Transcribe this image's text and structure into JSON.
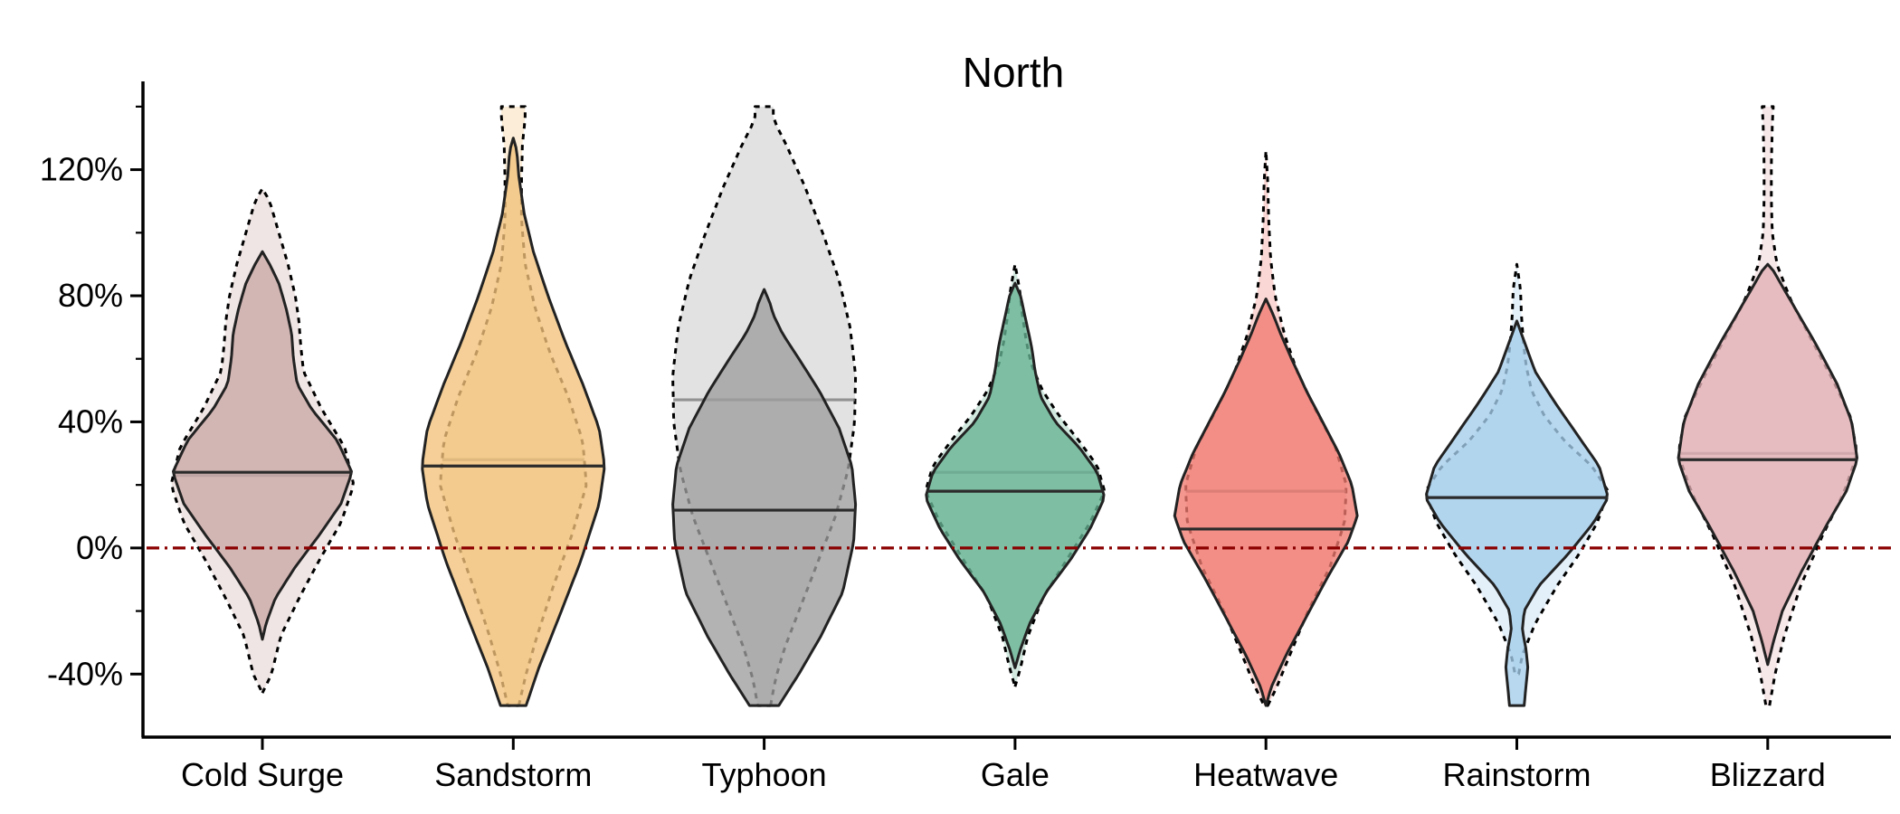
{
  "chart_data": {
    "type": "violin",
    "title": "North",
    "xlabel": "",
    "ylabel": "",
    "categories": [
      "Cold Surge",
      "Sandstorm",
      "Typhoon",
      "Gale",
      "Heatwave",
      "Rainstorm",
      "Blizzard"
    ],
    "ylim": [
      -60,
      148
    ],
    "y_ticks": [
      -40,
      0,
      40,
      80,
      120
    ],
    "y_tick_labels": [
      "-40%",
      "0%",
      "40%",
      "80%",
      "120%"
    ],
    "grid": false,
    "reference_line": {
      "y": 0,
      "style": "dash-dot",
      "color": "#8b0000"
    },
    "colors": [
      "#c9a9a6",
      "#f2c27a",
      "#9e9e9e",
      "#66b394",
      "#f07a70",
      "#a4cdea",
      "#e2b0b5"
    ],
    "series": [
      {
        "name": "",
        "style": "dotted-outline-light-fill",
        "violins": [
          {
            "min": -46,
            "max": 114,
            "median": 23,
            "shape": [
              [
                -46,
                0
              ],
              [
                -40,
                0.1
              ],
              [
                -28,
                0.2
              ],
              [
                -16,
                0.4
              ],
              [
                -4,
                0.62
              ],
              [
                8,
                0.86
              ],
              [
                20,
                1
              ],
              [
                32,
                0.9
              ],
              [
                44,
                0.65
              ],
              [
                56,
                0.45
              ],
              [
                64,
                0.42
              ],
              [
                72,
                0.4
              ],
              [
                80,
                0.36
              ],
              [
                90,
                0.28
              ],
              [
                100,
                0.18
              ],
              [
                110,
                0.08
              ],
              [
                114,
                0
              ]
            ]
          },
          {
            "min": -50,
            "max": 140,
            "median": 28,
            "shape": [
              [
                -50,
                0.06
              ],
              [
                -40,
                0.14
              ],
              [
                -28,
                0.26
              ],
              [
                -12,
                0.44
              ],
              [
                4,
                0.64
              ],
              [
                20,
                0.8
              ],
              [
                34,
                0.76
              ],
              [
                48,
                0.6
              ],
              [
                62,
                0.4
              ],
              [
                76,
                0.24
              ],
              [
                90,
                0.13
              ],
              [
                104,
                0.09
              ],
              [
                116,
                0.09
              ],
              [
                128,
                0.1
              ],
              [
                136,
                0.13
              ],
              [
                140,
                0.13
              ]
            ]
          },
          {
            "min": -50,
            "max": 140,
            "median": 47,
            "shape": [
              [
                -50,
                0.07
              ],
              [
                -42,
                0.12
              ],
              [
                -32,
                0.22
              ],
              [
                -20,
                0.38
              ],
              [
                -5,
                0.58
              ],
              [
                10,
                0.78
              ],
              [
                25,
                0.92
              ],
              [
                40,
                0.99
              ],
              [
                55,
                1
              ],
              [
                70,
                0.94
              ],
              [
                85,
                0.82
              ],
              [
                100,
                0.64
              ],
              [
                115,
                0.44
              ],
              [
                128,
                0.24
              ],
              [
                136,
                0.1
              ],
              [
                140,
                0.1
              ]
            ]
          },
          {
            "min": -44,
            "max": 90,
            "median": 24,
            "shape": [
              [
                -44,
                0
              ],
              [
                -38,
                0.06
              ],
              [
                -28,
                0.14
              ],
              [
                -16,
                0.3
              ],
              [
                -4,
                0.56
              ],
              [
                8,
                0.82
              ],
              [
                18,
                0.98
              ],
              [
                26,
                0.9
              ],
              [
                34,
                0.7
              ],
              [
                42,
                0.48
              ],
              [
                50,
                0.3
              ],
              [
                58,
                0.18
              ],
              [
                66,
                0.12
              ],
              [
                74,
                0.08
              ],
              [
                82,
                0.05
              ],
              [
                90,
                0
              ]
            ]
          },
          {
            "min": -50,
            "max": 126,
            "median": 18,
            "shape": [
              [
                -50,
                0.02
              ],
              [
                -44,
                0.12
              ],
              [
                -34,
                0.26
              ],
              [
                -20,
                0.46
              ],
              [
                -6,
                0.7
              ],
              [
                8,
                0.86
              ],
              [
                20,
                0.88
              ],
              [
                32,
                0.76
              ],
              [
                44,
                0.54
              ],
              [
                56,
                0.34
              ],
              [
                68,
                0.2
              ],
              [
                80,
                0.1
              ],
              [
                92,
                0.05
              ],
              [
                104,
                0.03
              ],
              [
                116,
                0.02
              ],
              [
                126,
                0
              ]
            ]
          },
          {
            "min": -40,
            "max": 90,
            "median": 16,
            "shape": [
              [
                -40,
                0.02
              ],
              [
                -34,
                0.06
              ],
              [
                -24,
                0.2
              ],
              [
                -12,
                0.44
              ],
              [
                -2,
                0.68
              ],
              [
                8,
                0.88
              ],
              [
                18,
                1
              ],
              [
                26,
                0.82
              ],
              [
                34,
                0.52
              ],
              [
                42,
                0.3
              ],
              [
                50,
                0.16
              ],
              [
                58,
                0.1
              ],
              [
                66,
                0.07
              ],
              [
                74,
                0.05
              ],
              [
                82,
                0.04
              ],
              [
                90,
                0
              ]
            ]
          },
          {
            "min": -50,
            "max": 140,
            "median": 30,
            "shape": [
              [
                -50,
                0.02
              ],
              [
                -40,
                0.08
              ],
              [
                -28,
                0.18
              ],
              [
                -12,
                0.36
              ],
              [
                4,
                0.6
              ],
              [
                18,
                0.84
              ],
              [
                30,
                0.98
              ],
              [
                42,
                0.9
              ],
              [
                54,
                0.7
              ],
              [
                66,
                0.48
              ],
              [
                78,
                0.26
              ],
              [
                90,
                0.1
              ],
              [
                100,
                0.05
              ],
              [
                110,
                0.04
              ],
              [
                122,
                0.04
              ],
              [
                134,
                0.05
              ],
              [
                140,
                0.06
              ]
            ]
          }
        ]
      },
      {
        "name": "",
        "style": "solid-outline-filled",
        "violins": [
          {
            "min": -29,
            "max": 94,
            "median": 24,
            "shape": [
              [
                -29,
                0
              ],
              [
                -24,
                0.04
              ],
              [
                -16,
                0.14
              ],
              [
                -6,
                0.36
              ],
              [
                4,
                0.62
              ],
              [
                14,
                0.86
              ],
              [
                24,
                0.98
              ],
              [
                34,
                0.82
              ],
              [
                44,
                0.54
              ],
              [
                52,
                0.38
              ],
              [
                60,
                0.34
              ],
              [
                68,
                0.32
              ],
              [
                76,
                0.26
              ],
              [
                84,
                0.18
              ],
              [
                90,
                0.08
              ],
              [
                94,
                0
              ]
            ]
          },
          {
            "min": -50,
            "max": 130,
            "median": 26,
            "shape": [
              [
                -50,
                0.14
              ],
              [
                -38,
                0.28
              ],
              [
                -22,
                0.5
              ],
              [
                -4,
                0.74
              ],
              [
                14,
                0.94
              ],
              [
                26,
                1
              ],
              [
                38,
                0.94
              ],
              [
                52,
                0.76
              ],
              [
                66,
                0.56
              ],
              [
                80,
                0.38
              ],
              [
                94,
                0.22
              ],
              [
                106,
                0.12
              ],
              [
                118,
                0.06
              ],
              [
                126,
                0.04
              ],
              [
                130,
                0
              ]
            ]
          },
          {
            "min": -50,
            "max": 82,
            "median": 12,
            "shape": [
              [
                -50,
                0.16
              ],
              [
                -40,
                0.38
              ],
              [
                -28,
                0.62
              ],
              [
                -14,
                0.86
              ],
              [
                2,
                0.98
              ],
              [
                14,
                1
              ],
              [
                26,
                0.96
              ],
              [
                38,
                0.82
              ],
              [
                50,
                0.6
              ],
              [
                60,
                0.38
              ],
              [
                68,
                0.2
              ],
              [
                74,
                0.1
              ],
              [
                78,
                0.06
              ],
              [
                82,
                0
              ]
            ]
          },
          {
            "min": -38,
            "max": 84,
            "median": 18,
            "shape": [
              [
                -38,
                0
              ],
              [
                -32,
                0.06
              ],
              [
                -24,
                0.16
              ],
              [
                -14,
                0.34
              ],
              [
                -4,
                0.6
              ],
              [
                6,
                0.82
              ],
              [
                16,
                0.98
              ],
              [
                24,
                0.9
              ],
              [
                32,
                0.7
              ],
              [
                40,
                0.44
              ],
              [
                48,
                0.28
              ],
              [
                56,
                0.22
              ],
              [
                64,
                0.18
              ],
              [
                72,
                0.12
              ],
              [
                80,
                0.06
              ],
              [
                84,
                0
              ]
            ]
          },
          {
            "min": -50,
            "max": 79,
            "median": 6,
            "shape": [
              [
                -50,
                0
              ],
              [
                -44,
                0.06
              ],
              [
                -34,
                0.22
              ],
              [
                -22,
                0.44
              ],
              [
                -10,
                0.66
              ],
              [
                2,
                0.9
              ],
              [
                10,
                1
              ],
              [
                20,
                0.94
              ],
              [
                30,
                0.8
              ],
              [
                40,
                0.62
              ],
              [
                50,
                0.44
              ],
              [
                60,
                0.28
              ],
              [
                68,
                0.16
              ],
              [
                74,
                0.08
              ],
              [
                79,
                0
              ]
            ]
          },
          {
            "min": -50,
            "max": 72,
            "median": 16,
            "shape": [
              [
                -50,
                0.08
              ],
              [
                -44,
                0.1
              ],
              [
                -38,
                0.12
              ],
              [
                -32,
                0.1
              ],
              [
                -26,
                0.06
              ],
              [
                -20,
                0.08
              ],
              [
                -12,
                0.24
              ],
              [
                -2,
                0.56
              ],
              [
                8,
                0.84
              ],
              [
                16,
                1
              ],
              [
                26,
                0.9
              ],
              [
                36,
                0.66
              ],
              [
                46,
                0.42
              ],
              [
                56,
                0.2
              ],
              [
                64,
                0.1
              ],
              [
                68,
                0.05
              ],
              [
                72,
                0
              ]
            ]
          },
          {
            "min": -37,
            "max": 90,
            "median": 28,
            "shape": [
              [
                -37,
                0
              ],
              [
                -30,
                0.06
              ],
              [
                -20,
                0.16
              ],
              [
                -8,
                0.36
              ],
              [
                6,
                0.62
              ],
              [
                18,
                0.86
              ],
              [
                28,
                0.98
              ],
              [
                40,
                0.92
              ],
              [
                52,
                0.76
              ],
              [
                64,
                0.54
              ],
              [
                74,
                0.34
              ],
              [
                82,
                0.18
              ],
              [
                88,
                0.06
              ],
              [
                90,
                0
              ]
            ]
          }
        ]
      }
    ]
  }
}
